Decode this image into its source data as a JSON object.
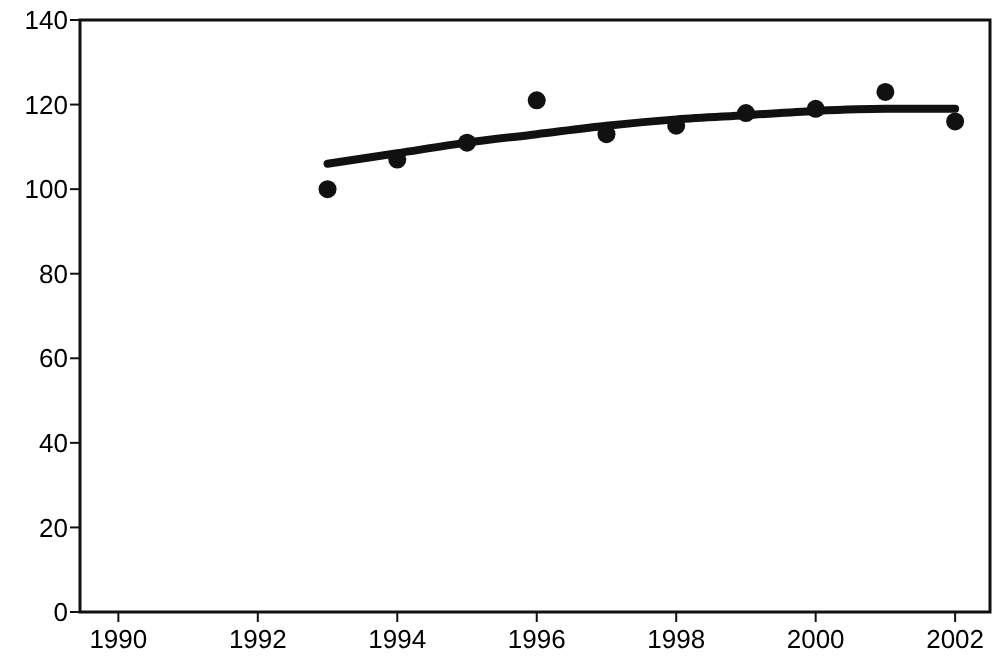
{
  "chart_data": {
    "type": "scatter",
    "x": [
      1993,
      1994,
      1995,
      1996,
      1997,
      1998,
      1999,
      2000,
      2001,
      2002
    ],
    "series": [
      {
        "color": "#111111",
        "marker": "circle",
        "values": [
          100,
          107,
          111,
          121,
          113,
          115,
          118,
          119,
          123,
          116
        ]
      },
      {
        "type": "line",
        "color": "#111111",
        "marker": "none",
        "values": [
          106,
          108.5,
          111,
          113,
          115,
          116.5,
          117.5,
          118.5,
          119,
          119
        ]
      }
    ],
    "xlim": [
      1989.45,
      2002.5
    ],
    "xticks": [
      1990,
      1992,
      1994,
      1996,
      1998,
      2000,
      2002
    ],
    "ylim": [
      0,
      140
    ],
    "yticks": [
      0,
      20,
      40,
      60,
      80,
      100,
      120,
      140
    ],
    "grid": false
  }
}
